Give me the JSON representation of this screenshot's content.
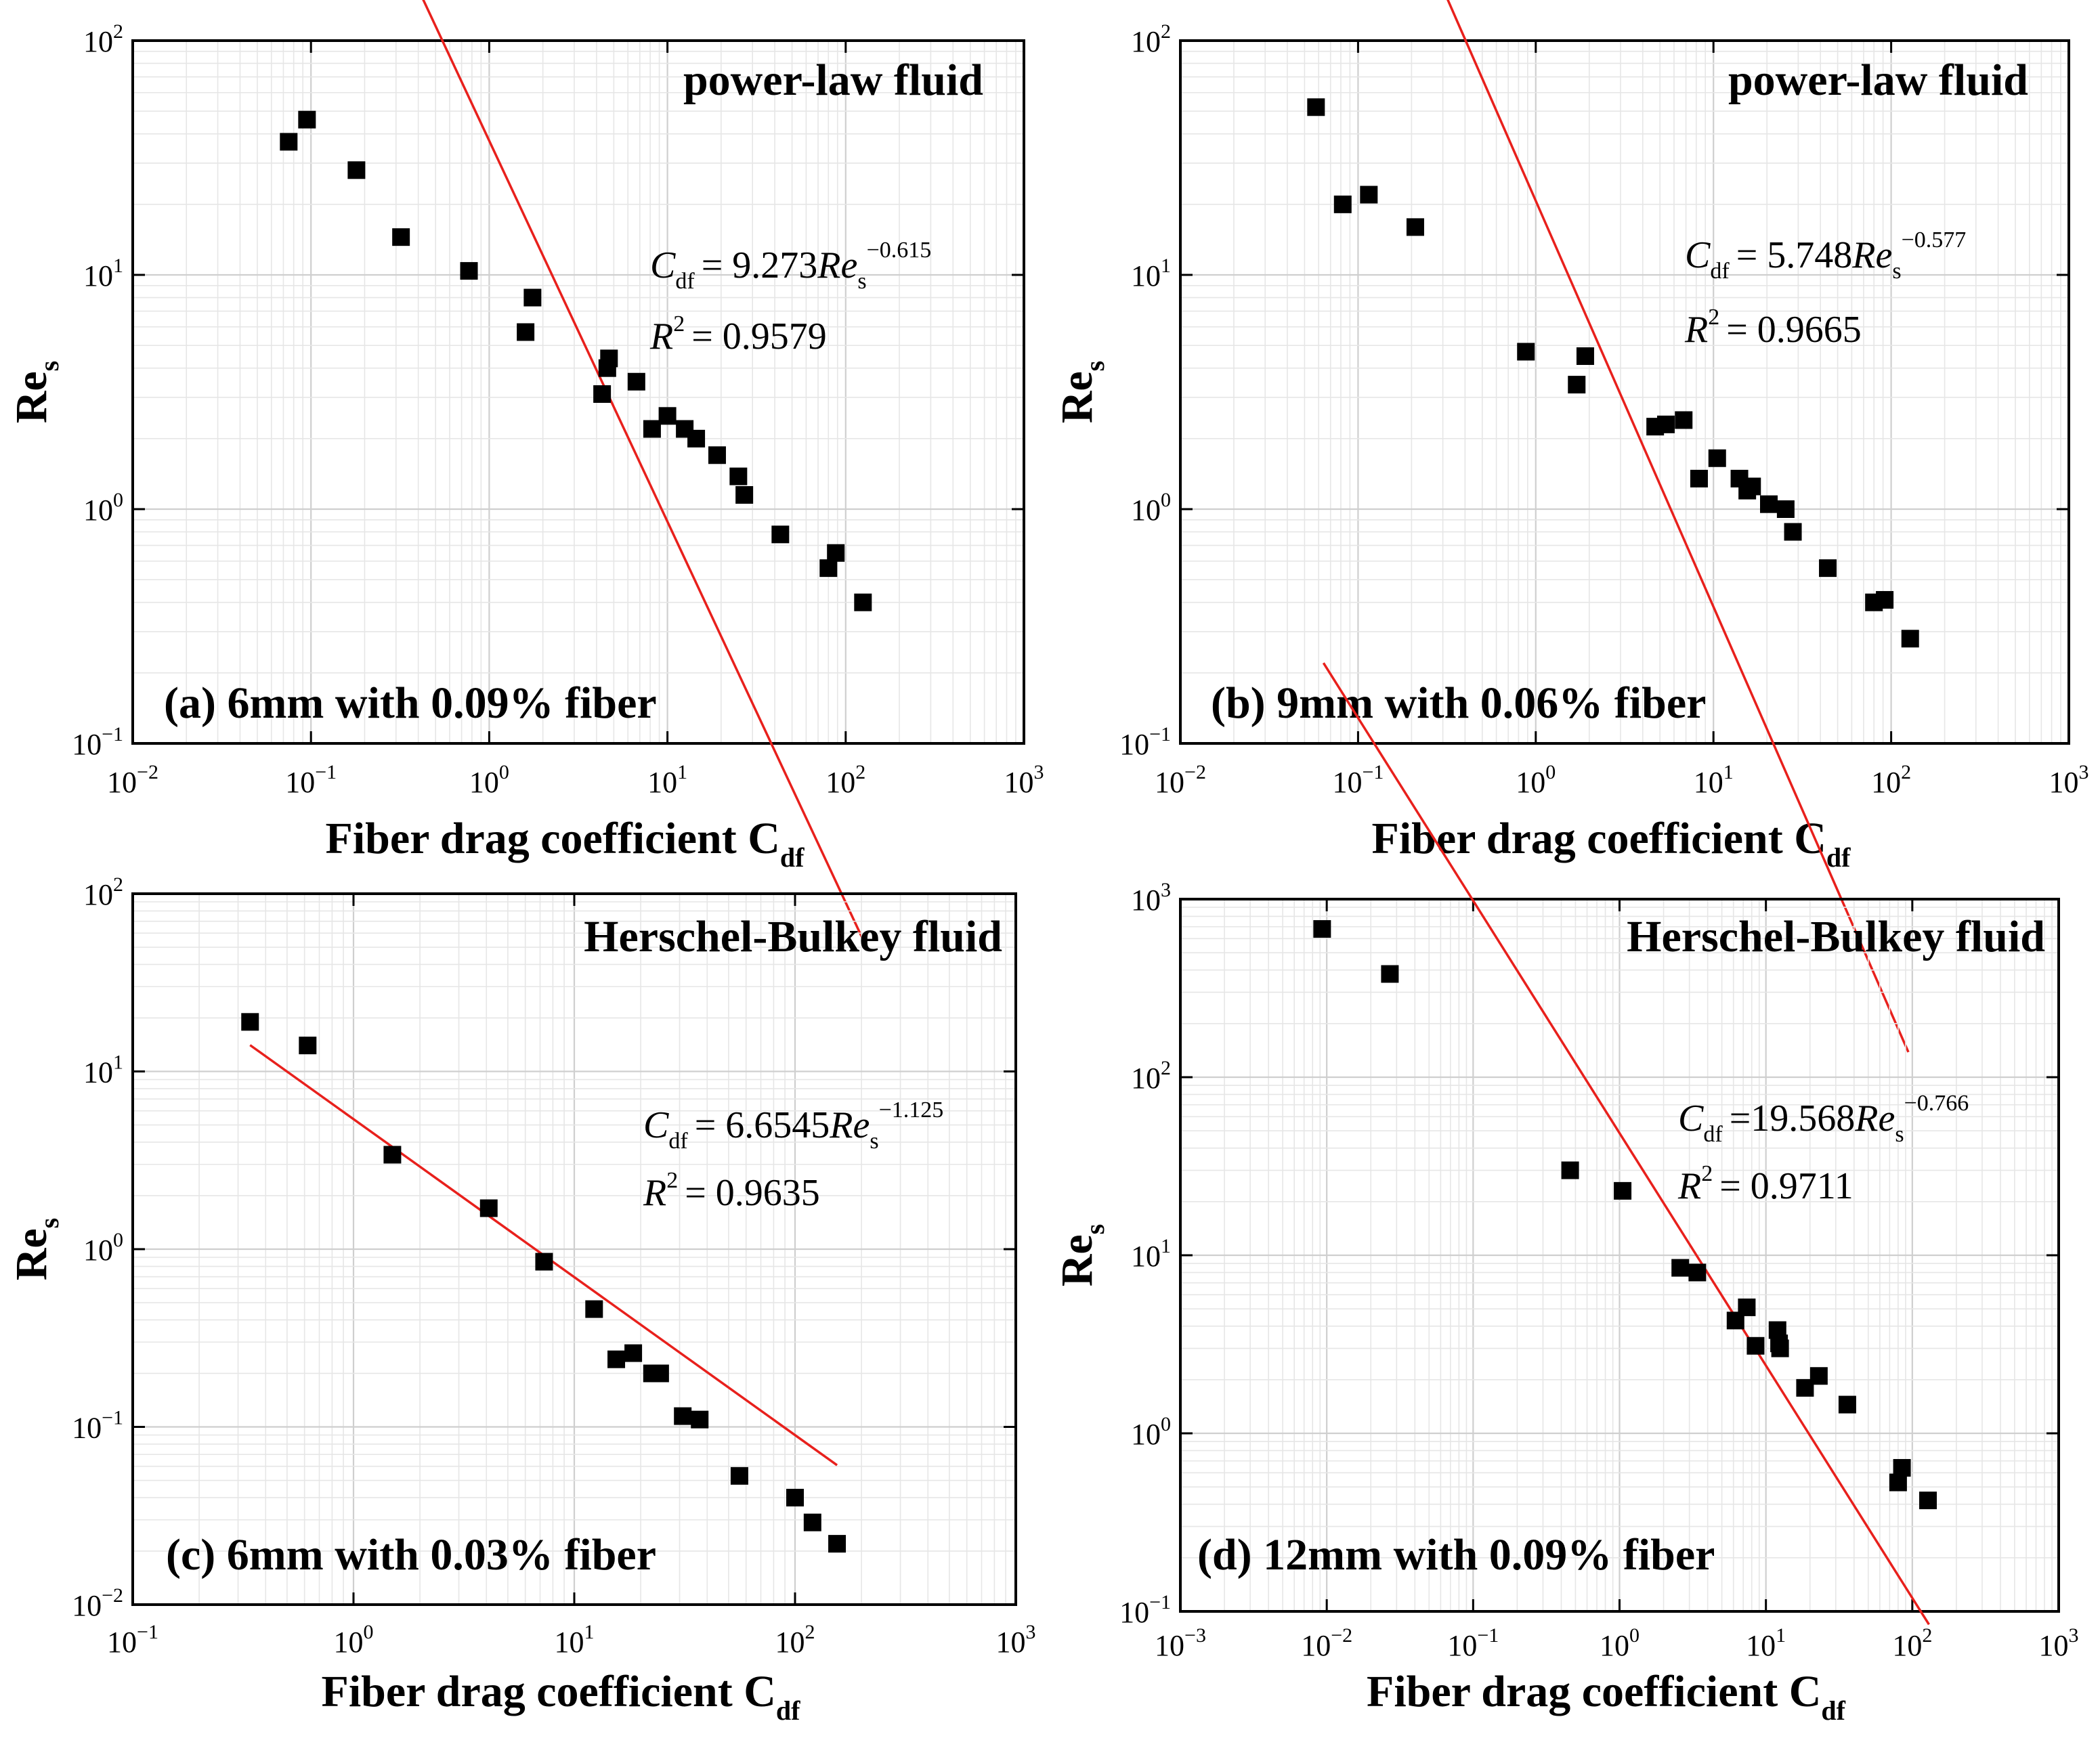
{
  "chart_data": [
    {
      "type": "scatter",
      "panel_label": "(a) 6mm with 0.09% fiber",
      "fluid_label": "power-law fluid",
      "xlabel": "Fiber drag coefficient C",
      "xlabel_sub": "df",
      "ylabel": "Re",
      "ylabel_sub": "s",
      "xscale": "log",
      "yscale": "log",
      "xlim": [
        0.01,
        1000
      ],
      "ylim": [
        0.1,
        100
      ],
      "x_ticks": [
        {
          "base": "10",
          "exp": "−2"
        },
        {
          "base": "10",
          "exp": "−1"
        },
        {
          "base": "10",
          "exp": "0"
        },
        {
          "base": "10",
          "exp": "1"
        },
        {
          "base": "10",
          "exp": "2"
        },
        {
          "base": "10",
          "exp": "3"
        }
      ],
      "y_ticks": [
        {
          "base": "10",
          "exp": "−1"
        },
        {
          "base": "10",
          "exp": "0"
        },
        {
          "base": "10",
          "exp": "1"
        },
        {
          "base": "10",
          "exp": "2"
        }
      ],
      "grid": true,
      "equation": {
        "lhs_var": "C",
        "lhs_sub": "df",
        "rhs": "= 9.273",
        "var": "Re",
        "var_sub": "s",
        "exponent": "−0.615",
        "r2": "= 0.9579"
      },
      "fit": {
        "coefficient": 9.273,
        "exponent": -0.615,
        "r2": 0.9579,
        "x_range": [
          0.075,
          125
        ]
      },
      "series": [
        {
          "marker": "square",
          "color": "#000000",
          "x": [
            0.075,
            0.095,
            0.18,
            0.32,
            0.77,
            1.6,
            1.75,
            4.3,
            4.6,
            4.7,
            6.7,
            8.2,
            10,
            12.5,
            14.5,
            19,
            25,
            27,
            43,
            80,
            88,
            125
          ],
          "y": [
            37,
            46,
            28,
            14.5,
            10.4,
            5.7,
            8.0,
            3.1,
            4.0,
            4.4,
            3.5,
            2.2,
            2.5,
            2.2,
            2.0,
            1.7,
            1.38,
            1.15,
            0.78,
            0.56,
            0.65,
            0.4
          ]
        }
      ],
      "fit_color": "#e8201c"
    },
    {
      "type": "scatter",
      "panel_label": "(b) 9mm with 0.06% fiber",
      "fluid_label": "power-law fluid",
      "xlabel": "Fiber drag coefficient C",
      "xlabel_sub": "df",
      "ylabel": "Re",
      "ylabel_sub": "s",
      "xscale": "log",
      "yscale": "log",
      "xlim": [
        0.01,
        1000
      ],
      "ylim": [
        0.1,
        100
      ],
      "x_ticks": [
        {
          "base": "10",
          "exp": "−2"
        },
        {
          "base": "10",
          "exp": "−1"
        },
        {
          "base": "10",
          "exp": "0"
        },
        {
          "base": "10",
          "exp": "1"
        },
        {
          "base": "10",
          "exp": "2"
        },
        {
          "base": "10",
          "exp": "3"
        }
      ],
      "y_ticks": [
        {
          "base": "10",
          "exp": "−1"
        },
        {
          "base": "10",
          "exp": "0"
        },
        {
          "base": "10",
          "exp": "1"
        },
        {
          "base": "10",
          "exp": "2"
        }
      ],
      "grid": true,
      "equation": {
        "lhs_var": "C",
        "lhs_sub": "df",
        "rhs": "= 5.748",
        "var": "Re",
        "var_sub": "s",
        "exponent": "−0.577",
        "r2": "= 0.9665"
      },
      "fit": {
        "coefficient": 5.748,
        "exponent": -0.577,
        "r2": 0.9665,
        "x_range": [
          0.06,
          125
        ]
      },
      "series": [
        {
          "marker": "square",
          "color": "#000000",
          "x": [
            0.058,
            0.082,
            0.115,
            0.21,
            0.88,
            1.7,
            1.9,
            4.7,
            5.4,
            6.8,
            8.3,
            10.5,
            14,
            15.5,
            16.5,
            20.5,
            25.5,
            28,
            44,
            80,
            92,
            128
          ],
          "y": [
            52,
            20,
            22,
            16,
            4.7,
            3.4,
            4.5,
            2.25,
            2.3,
            2.4,
            1.35,
            1.65,
            1.35,
            1.2,
            1.25,
            1.05,
            1.0,
            0.8,
            0.56,
            0.4,
            0.41,
            0.28
          ]
        }
      ],
      "fit_color": "#e8201c"
    },
    {
      "type": "scatter",
      "panel_label": "(c) 6mm with 0.03% fiber",
      "fluid_label": "Herschel-Bulkey fluid",
      "xlabel": "Fiber drag coefficient C",
      "xlabel_sub": "df",
      "ylabel": "Re",
      "ylabel_sub": "s",
      "xscale": "log",
      "yscale": "log",
      "xlim": [
        0.1,
        1000
      ],
      "ylim": [
        0.01,
        100
      ],
      "x_ticks": [
        {
          "base": "10",
          "exp": "−1"
        },
        {
          "base": "10",
          "exp": "0"
        },
        {
          "base": "10",
          "exp": "1"
        },
        {
          "base": "10",
          "exp": "2"
        },
        {
          "base": "10",
          "exp": "3"
        }
      ],
      "y_ticks": [
        {
          "base": "10",
          "exp": "−2"
        },
        {
          "base": "10",
          "exp": "−1"
        },
        {
          "base": "10",
          "exp": "0"
        },
        {
          "base": "10",
          "exp": "1"
        },
        {
          "base": "10",
          "exp": "2"
        }
      ],
      "grid": true,
      "equation": {
        "lhs_var": "C",
        "lhs_sub": "df",
        "rhs": "= 6.6545",
        "var": "Re",
        "var_sub": "s",
        "exponent": "−1.125",
        "r2": "= 0.9635"
      },
      "fit": {
        "coefficient": 6.6545,
        "exponent": -1.125,
        "r2": 0.9635,
        "x_range": [
          0.34,
          155
        ]
      },
      "series": [
        {
          "marker": "square",
          "color": "#000000",
          "x": [
            0.34,
            0.62,
            1.5,
            4.1,
            7.3,
            12.3,
            15.5,
            18.5,
            22.5,
            24.5,
            31,
            37,
            56,
            100,
            120,
            155
          ],
          "y": [
            19,
            14,
            3.4,
            1.7,
            0.85,
            0.46,
            0.24,
            0.26,
            0.2,
            0.2,
            0.115,
            0.11,
            0.053,
            0.04,
            0.029,
            0.022
          ]
        }
      ],
      "fit_color": "#e8201c"
    },
    {
      "type": "scatter",
      "panel_label": "(d) 12mm with 0.09% fiber",
      "fluid_label": "Herschel-Bulkey fluid",
      "xlabel": "Fiber drag coefficient C",
      "xlabel_sub": "df",
      "ylabel": "Re",
      "ylabel_sub": "s",
      "xscale": "log",
      "yscale": "log",
      "xlim": [
        0.001,
        1000
      ],
      "ylim": [
        0.1,
        1000
      ],
      "x_ticks": [
        {
          "base": "10",
          "exp": "−3"
        },
        {
          "base": "10",
          "exp": "−2"
        },
        {
          "base": "10",
          "exp": "−1"
        },
        {
          "base": "10",
          "exp": "0"
        },
        {
          "base": "10",
          "exp": "1"
        },
        {
          "base": "10",
          "exp": "2"
        },
        {
          "base": "10",
          "exp": "3"
        }
      ],
      "y_ticks": [
        {
          "base": "10",
          "exp": "−1"
        },
        {
          "base": "10",
          "exp": "0"
        },
        {
          "base": "10",
          "exp": "1"
        },
        {
          "base": "10",
          "exp": "2"
        },
        {
          "base": "10",
          "exp": "3"
        }
      ],
      "grid": true,
      "equation": {
        "lhs_var": "C",
        "lhs_sub": "df",
        "rhs": "=19.568",
        "var": "Re",
        "var_sub": "s",
        "exponent": "−0.766",
        "r2": "= 0.9711"
      },
      "fit": {
        "coefficient": 19.568,
        "exponent": -0.766,
        "r2": 0.9711,
        "x_range": [
          0.0095,
          130
        ]
      },
      "series": [
        {
          "marker": "square",
          "color": "#000000",
          "x": [
            0.0093,
            0.027,
            0.46,
            1.05,
            2.6,
            3.4,
            6.2,
            7.4,
            8.5,
            12,
            12.3,
            12.5,
            18.5,
            23,
            36,
            80,
            85,
            128
          ],
          "y": [
            680,
            380,
            30,
            23,
            8.5,
            8.0,
            4.3,
            5.1,
            3.1,
            3.8,
            3.2,
            3.0,
            1.8,
            2.1,
            1.45,
            0.53,
            0.64,
            0.42
          ]
        }
      ],
      "fit_color": "#e8201c"
    }
  ]
}
